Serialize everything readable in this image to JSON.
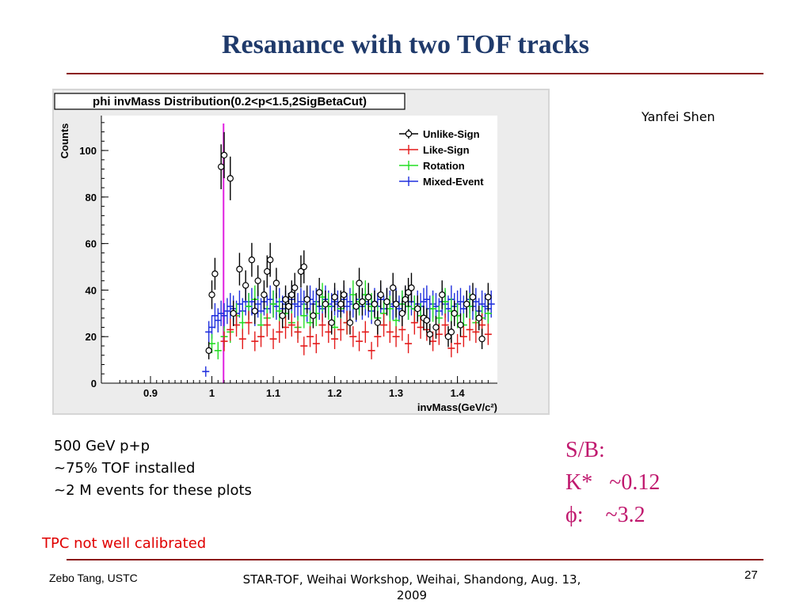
{
  "slide": {
    "title": "Resanance with two TOF tracks",
    "author": "Yanfei Shen",
    "notes": [
      "500 GeV p+p",
      "~75% TOF installed",
      "~2 M events for these plots"
    ],
    "sb": [
      "S/B:",
      "K*   ~0.12",
      "ϕ:    ~3.2"
    ],
    "warning": "TPC not well calibrated",
    "footer_left": "Zebo Tang, USTC",
    "footer_center": "STAR-TOF, Weihai Workshop, Weihai, Shandong, Aug. 13, 2009",
    "page_number": "27",
    "colors": {
      "title": "#1f3a6b",
      "rule": "#8b1a1a",
      "sb": "#c0186e",
      "warning": "#e00000"
    }
  },
  "chart_data": {
    "type": "scatter",
    "title": "phi invMass Distribution(0.2<p<1.5,2SigBetaCut)",
    "ylabel": "Counts",
    "xlabel": "invMass(GeV/c²)",
    "xlim": [
      0.82,
      1.465
    ],
    "ylim": [
      0,
      115
    ],
    "xticks": [
      "0.9",
      "1",
      "1.1",
      "1.2",
      "1.3",
      "1.4"
    ],
    "yticks": [
      "0",
      "20",
      "40",
      "60",
      "80",
      "100"
    ],
    "phi_mass_line": 1.019,
    "legend_position": "top-right",
    "series": [
      {
        "name": "Unlike-Sign",
        "color": "#000000",
        "marker": "open-circle",
        "x": [
          0.995,
          1.0,
          1.005,
          1.015,
          1.02,
          1.03,
          1.035,
          1.045,
          1.055,
          1.065,
          1.07,
          1.075,
          1.085,
          1.09,
          1.095,
          1.105,
          1.115,
          1.12,
          1.125,
          1.13,
          1.135,
          1.145,
          1.15,
          1.155,
          1.165,
          1.175,
          1.185,
          1.195,
          1.2,
          1.21,
          1.215,
          1.225,
          1.235,
          1.24,
          1.245,
          1.255,
          1.265,
          1.27,
          1.275,
          1.285,
          1.295,
          1.3,
          1.31,
          1.315,
          1.32,
          1.325,
          1.335,
          1.345,
          1.35,
          1.355,
          1.365,
          1.375,
          1.385,
          1.39,
          1.395,
          1.405,
          1.415,
          1.425,
          1.435,
          1.44,
          1.45
        ],
        "y": [
          14,
          38,
          47,
          93,
          98,
          88,
          30,
          49,
          42,
          53,
          31,
          44,
          38,
          48,
          53,
          43,
          29,
          36,
          33,
          38,
          41,
          48,
          50,
          36,
          29,
          39,
          34,
          26,
          37,
          34,
          38,
          26,
          33,
          43,
          35,
          37,
          34,
          26,
          38,
          35,
          41,
          34,
          30,
          36,
          39,
          41,
          32,
          28,
          27,
          21,
          24,
          38,
          20,
          22,
          30,
          25,
          34,
          37,
          28,
          19,
          37
        ]
      },
      {
        "name": "Like-Sign",
        "color": "#e41a1a",
        "marker": "cross",
        "x": [
          1.02,
          1.03,
          1.04,
          1.05,
          1.06,
          1.07,
          1.08,
          1.09,
          1.1,
          1.11,
          1.12,
          1.13,
          1.14,
          1.15,
          1.16,
          1.17,
          1.18,
          1.19,
          1.2,
          1.21,
          1.22,
          1.23,
          1.24,
          1.25,
          1.26,
          1.27,
          1.28,
          1.29,
          1.3,
          1.31,
          1.32,
          1.33,
          1.34,
          1.35,
          1.36,
          1.37,
          1.38,
          1.39,
          1.4,
          1.41,
          1.42,
          1.43,
          1.44,
          1.45
        ],
        "y": [
          18,
          23,
          25,
          19,
          26,
          18,
          20,
          25,
          19,
          22,
          24,
          25,
          22,
          16,
          20,
          17,
          25,
          22,
          19,
          23,
          26,
          20,
          18,
          22,
          14,
          20,
          25,
          22,
          20,
          23,
          17,
          26,
          24,
          23,
          18,
          21,
          25,
          15,
          17,
          20,
          23,
          22,
          25,
          21
        ]
      },
      {
        "name": "Rotation",
        "color": "#22dd22",
        "marker": "cross",
        "x": [
          1.0,
          1.01,
          1.02,
          1.03,
          1.04,
          1.05,
          1.06,
          1.07,
          1.08,
          1.09,
          1.1,
          1.11,
          1.12,
          1.13,
          1.14,
          1.15,
          1.16,
          1.17,
          1.18,
          1.19,
          1.2,
          1.21,
          1.22,
          1.23,
          1.24,
          1.25,
          1.26,
          1.27,
          1.28,
          1.29,
          1.3,
          1.31,
          1.32,
          1.33,
          1.34,
          1.35,
          1.36,
          1.37,
          1.38,
          1.39,
          1.4,
          1.41,
          1.42,
          1.43,
          1.44,
          1.45
        ],
        "y": [
          17,
          14,
          20,
          22,
          29,
          26,
          33,
          36,
          25,
          28,
          34,
          31,
          30,
          26,
          24,
          29,
          26,
          30,
          37,
          33,
          24,
          32,
          26,
          38,
          35,
          38,
          33,
          28,
          30,
          32,
          27,
          34,
          33,
          32,
          29,
          27,
          32,
          28,
          35,
          31,
          29,
          25,
          33,
          26,
          28,
          30
        ]
      },
      {
        "name": "Mixed-Event",
        "color": "#1f2fdd",
        "marker": "cross",
        "x": [
          0.99,
          0.995,
          1.0,
          1.005,
          1.01,
          1.015,
          1.02,
          1.025,
          1.03,
          1.035,
          1.04,
          1.045,
          1.05,
          1.055,
          1.06,
          1.065,
          1.07,
          1.075,
          1.08,
          1.085,
          1.09,
          1.095,
          1.1,
          1.105,
          1.11,
          1.115,
          1.12,
          1.125,
          1.13,
          1.135,
          1.14,
          1.145,
          1.15,
          1.155,
          1.16,
          1.165,
          1.17,
          1.175,
          1.18,
          1.185,
          1.19,
          1.195,
          1.2,
          1.205,
          1.21,
          1.215,
          1.22,
          1.225,
          1.23,
          1.235,
          1.24,
          1.245,
          1.25,
          1.255,
          1.26,
          1.265,
          1.27,
          1.275,
          1.28,
          1.285,
          1.29,
          1.295,
          1.3,
          1.305,
          1.31,
          1.315,
          1.32,
          1.325,
          1.33,
          1.335,
          1.34,
          1.345,
          1.35,
          1.355,
          1.36,
          1.365,
          1.37,
          1.375,
          1.38,
          1.385,
          1.39,
          1.395,
          1.4,
          1.405,
          1.41,
          1.415,
          1.42,
          1.425,
          1.43,
          1.435,
          1.44,
          1.445,
          1.45,
          1.455
        ],
        "y": [
          5,
          22,
          24,
          29,
          27,
          30,
          29,
          31,
          33,
          32,
          30,
          34,
          31,
          35,
          33,
          35,
          30,
          34,
          31,
          35,
          32,
          36,
          34,
          33,
          35,
          32,
          34,
          33,
          36,
          34,
          33,
          35,
          34,
          32,
          36,
          34,
          35,
          33,
          32,
          36,
          34,
          33,
          35,
          34,
          31,
          36,
          33,
          35,
          34,
          32,
          36,
          33,
          35,
          34,
          31,
          35,
          33,
          36,
          32,
          35,
          34,
          33,
          35,
          32,
          34,
          36,
          33,
          35,
          32,
          34,
          33,
          35,
          36,
          32,
          34,
          33,
          31,
          35,
          34,
          32,
          36,
          33,
          34,
          35,
          32,
          34,
          36,
          33,
          35,
          31,
          34,
          33,
          32,
          34
        ]
      }
    ]
  }
}
